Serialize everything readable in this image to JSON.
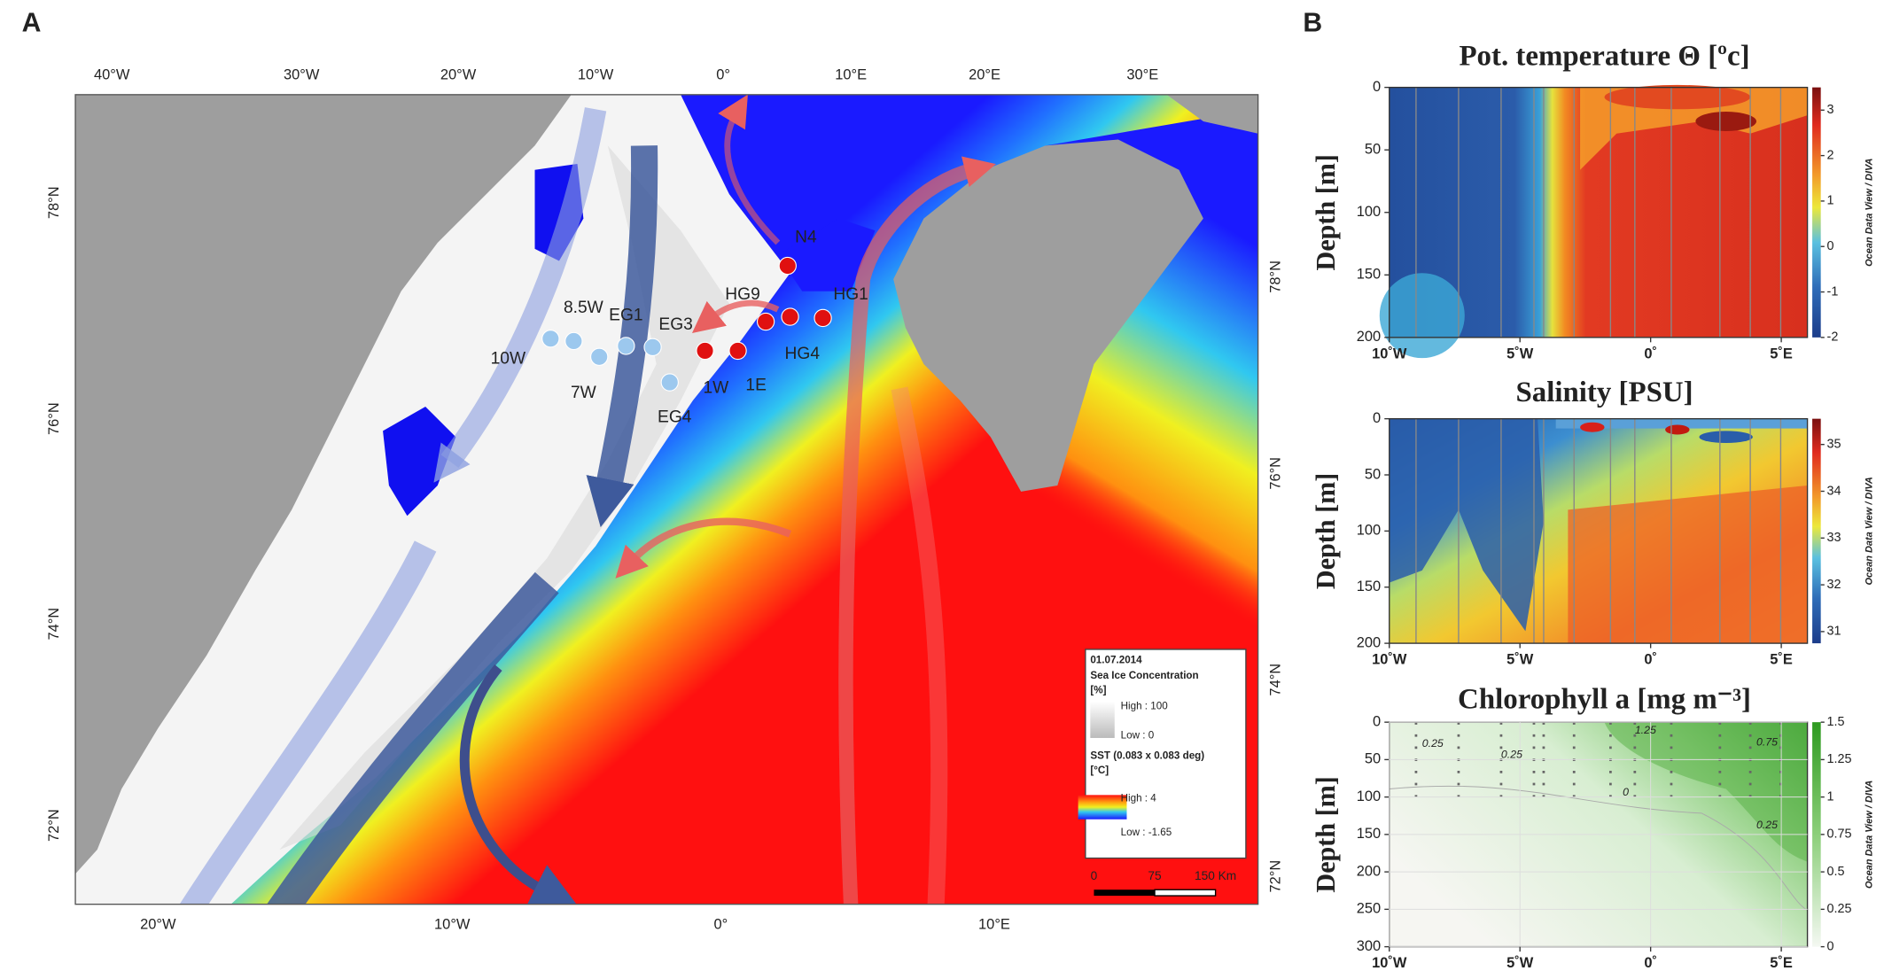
{
  "panel_a": {
    "label": "A",
    "top_lon_labels": [
      "40°W",
      "30°W",
      "20°W",
      "10°W",
      "0°",
      "10°E",
      "20°E",
      "30°E"
    ],
    "bottom_lon_labels": [
      "20°W",
      "10°W",
      "0°",
      "10°E"
    ],
    "left_lat_labels": [
      "78°N",
      "76°N",
      "74°N",
      "72°N"
    ],
    "right_lat_labels": [
      "78°N",
      "76°N",
      "74°N",
      "72°N"
    ],
    "stations": [
      {
        "name": "10W",
        "color": "#9cc8ee"
      },
      {
        "name": "8.5W",
        "color": "#9cc8ee"
      },
      {
        "name": "7W",
        "color": "#9cc8ee"
      },
      {
        "name": "EG1",
        "color": "#9cc8ee"
      },
      {
        "name": "EG3",
        "color": "#9cc8ee"
      },
      {
        "name": "EG4",
        "color": "#9cc8ee"
      },
      {
        "name": "1W",
        "color": "#e01010"
      },
      {
        "name": "1E",
        "color": "#e01010"
      },
      {
        "name": "HG9",
        "color": "#e01010"
      },
      {
        "name": "HG4",
        "color": "#e01010"
      },
      {
        "name": "HG1",
        "color": "#e01010"
      },
      {
        "name": "N4",
        "color": "#e01010"
      }
    ],
    "legend": {
      "date": "01.07.2014",
      "sea_ice_title": "Sea Ice Concentration",
      "sea_ice_unit": "[%]",
      "sea_ice_high": "High : 100",
      "sea_ice_low": "Low : 0",
      "sst_title": "SST (0.083 x 0.083 deg)",
      "sst_unit": "[°C]",
      "sst_high": "High : 4",
      "sst_low": "Low : -1.65"
    },
    "scale_bar": [
      "0",
      "75",
      "150 Km"
    ]
  },
  "panel_b": {
    "label": "B",
    "sections": [
      {
        "title": "Pot. temperature Θ [ºc]",
        "y_label": "Depth [m]",
        "ylim": [
          0,
          200
        ],
        "yticks": [
          0,
          50,
          100,
          150,
          200
        ],
        "xlim": [
          -10,
          6
        ],
        "xticks": [
          {
            "value": -10,
            "label": "10˚W"
          },
          {
            "value": -5,
            "label": "5˚W"
          },
          {
            "value": 0,
            "label": "0˚"
          },
          {
            "value": 5,
            "label": "5˚E"
          }
        ],
        "colorbar_lim": [
          -2,
          3.5
        ],
        "colorbar_ticks": [
          3,
          2,
          1,
          0,
          -1,
          -2
        ],
        "colorbar_label": "Ocean Data View / DIVA"
      },
      {
        "title": "Salinity [PSU]",
        "y_label": "Depth [m]",
        "ylim": [
          0,
          200
        ],
        "yticks": [
          0,
          50,
          100,
          150,
          200
        ],
        "xlim": [
          -10,
          6
        ],
        "xticks": [
          {
            "value": -10,
            "label": "10˚W"
          },
          {
            "value": -5,
            "label": "5˚W"
          },
          {
            "value": 0,
            "label": "0˚"
          },
          {
            "value": 5,
            "label": "5˚E"
          }
        ],
        "colorbar_lim": [
          30.75,
          35.55
        ],
        "colorbar_ticks": [
          35,
          34,
          33,
          32,
          31
        ],
        "colorbar_label": "Ocean Data View / DIVA"
      },
      {
        "title": "Chlorophyll a [mg m⁻³]",
        "y_label": "Depth [m]",
        "ylim": [
          0,
          300
        ],
        "yticks": [
          0,
          50,
          100,
          150,
          200,
          250,
          300
        ],
        "xlim": [
          -10,
          6
        ],
        "xticks": [
          {
            "value": -10,
            "label": "10˚W"
          },
          {
            "value": -5,
            "label": "5˚W"
          },
          {
            "value": 0,
            "label": "0˚"
          },
          {
            "value": 5,
            "label": "5˚E"
          }
        ],
        "colorbar_lim": [
          0,
          1.5
        ],
        "colorbar_ticks": [
          1.5,
          1.25,
          1,
          0.75,
          0.5,
          0.25,
          0
        ],
        "colorbar_label": "Ocean Data View / DIVA",
        "contour_labels": [
          "0.25",
          "0.25",
          "1.25",
          "0.75",
          "0",
          "0.25"
        ]
      }
    ]
  }
}
